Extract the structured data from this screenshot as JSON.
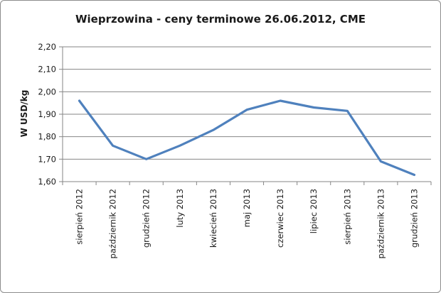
{
  "chart_data": {
    "type": "line",
    "title": "Wieprzowina - ceny terminowe 26.06.2012, CME",
    "ylabel": "W USD/kg",
    "xlabel": "",
    "ylim": [
      1.6,
      2.2
    ],
    "yticks": [
      "1,60",
      "1,70",
      "1,80",
      "1,90",
      "2,00",
      "2,10",
      "2,20"
    ],
    "categories": [
      "sierpień 2012",
      "październik 2012",
      "grudzień 2012",
      "luty 2013",
      "kwiecień 2013",
      "maj 2013",
      "czerwiec 2013",
      "lipiec 2013",
      "sierpień 2013",
      "październik 2013",
      "grudzień 2013"
    ],
    "series": [
      {
        "values": [
          1.96,
          1.76,
          1.7,
          1.76,
          1.83,
          1.92,
          1.96,
          1.93,
          1.915,
          1.69,
          1.63
        ]
      }
    ],
    "grid": true,
    "legend": "none",
    "line_color": "#4f81bd",
    "grid_color": "#868686"
  }
}
